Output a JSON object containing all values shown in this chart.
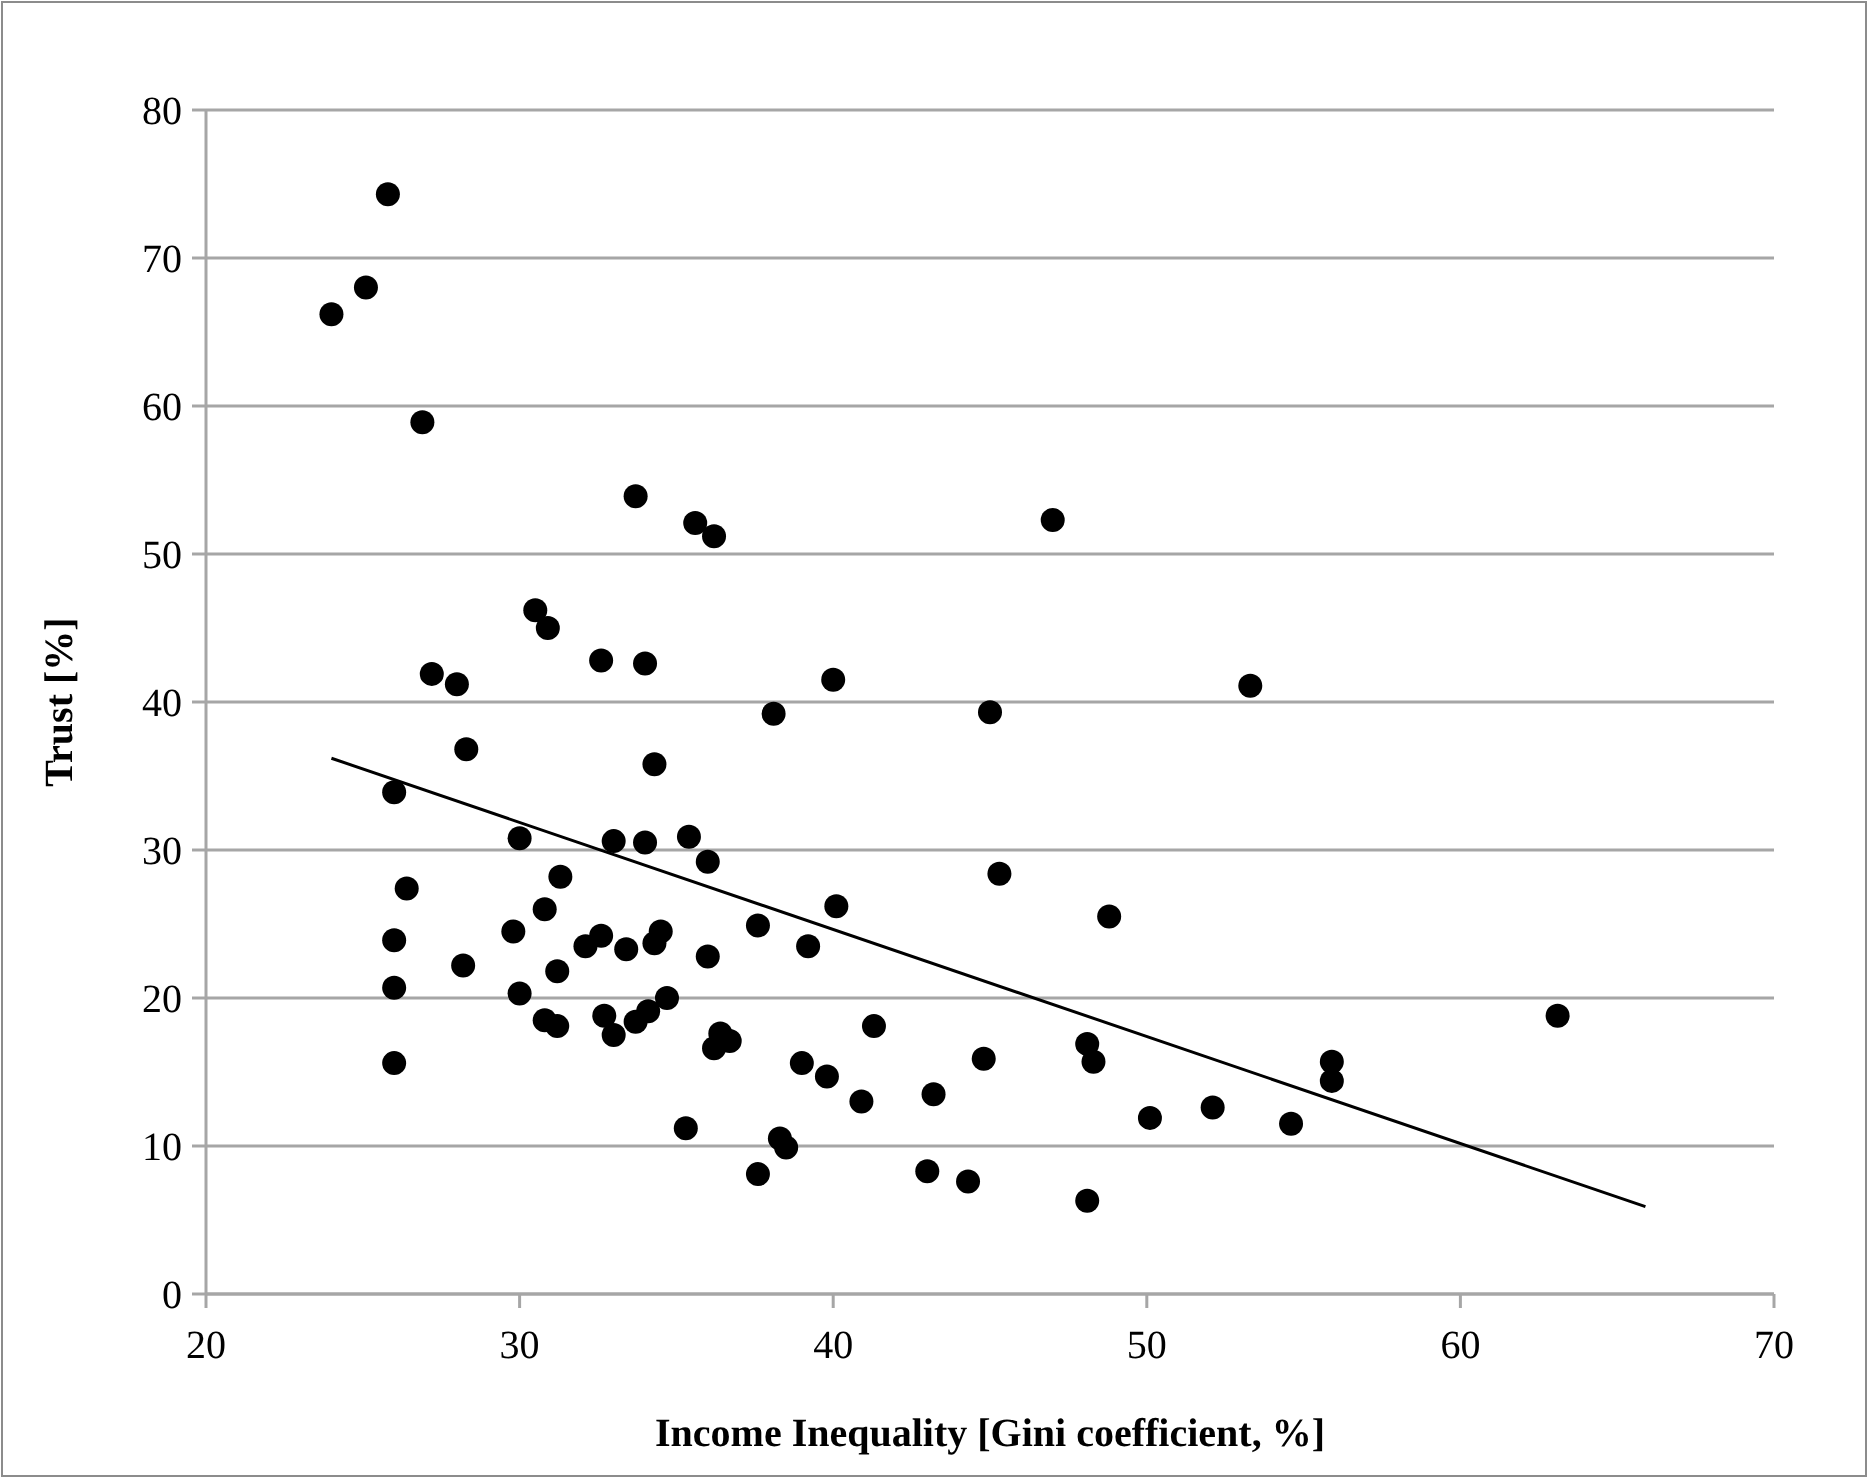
{
  "chart_data": {
    "type": "scatter",
    "xlabel": "Income Inequality [Gini coefficient, %]",
    "ylabel": "Trust [%]",
    "xlim": [
      20,
      70
    ],
    "xticks": [
      20,
      30,
      40,
      50,
      60,
      70
    ],
    "ylim": [
      0,
      80
    ],
    "yticks": [
      0,
      10,
      20,
      30,
      40,
      50,
      60,
      70,
      80
    ],
    "grid": "y",
    "marker": "circle",
    "series": [
      {
        "color": "#000000",
        "x": [
          24.0,
          25.1,
          25.8,
          26.9,
          33.7,
          35.6,
          36.2,
          30.5,
          30.9,
          32.6,
          34.0,
          27.2,
          28.0,
          38.1,
          40.0,
          53.3,
          47.0,
          45.0,
          45.3,
          48.8,
          44.8,
          43.2,
          43.0,
          44.3,
          48.1,
          48.3,
          48.1,
          50.1,
          52.1,
          54.6,
          55.9,
          55.9,
          63.1,
          28.3,
          26.0,
          34.3,
          30.0,
          33.0,
          34.0,
          35.4,
          36.0,
          31.3,
          26.4,
          40.1,
          30.8,
          37.6,
          29.8,
          34.5,
          34.3,
          26.0,
          32.6,
          32.1,
          33.4,
          39.2,
          36.0,
          28.2,
          31.2,
          26.0,
          30.0,
          34.7,
          34.1,
          32.7,
          30.8,
          31.2,
          33.7,
          33.0,
          41.3,
          36.4,
          36.7,
          36.2,
          26.0,
          39.0,
          39.8,
          40.9,
          35.3,
          38.3,
          38.5,
          37.6
        ],
        "values": [
          66.2,
          68.0,
          74.3,
          58.9,
          53.9,
          52.1,
          51.2,
          46.2,
          45.0,
          42.8,
          42.6,
          41.9,
          41.2,
          39.2,
          41.5,
          41.1,
          52.3,
          39.3,
          28.4,
          25.5,
          15.9,
          13.5,
          8.3,
          7.6,
          16.9,
          15.7,
          6.3,
          11.9,
          12.6,
          11.5,
          15.7,
          14.4,
          18.8,
          36.8,
          33.9,
          35.8,
          30.8,
          30.6,
          30.5,
          30.9,
          29.2,
          28.2,
          27.4,
          26.2,
          26.0,
          24.9,
          24.5,
          24.5,
          23.7,
          23.9,
          24.2,
          23.5,
          23.3,
          23.5,
          22.8,
          22.2,
          21.8,
          20.7,
          20.3,
          20.0,
          19.1,
          18.8,
          18.5,
          18.1,
          18.4,
          17.5,
          18.1,
          17.6,
          17.1,
          16.6,
          15.6,
          15.6,
          14.7,
          13.0,
          11.2,
          10.5,
          9.9,
          8.1
        ]
      },
      {
        "type": "line",
        "color": "#000000",
        "x": [
          24.0,
          65.9
        ],
        "values": [
          36.2,
          5.9
        ],
        "marker": "none"
      }
    ]
  }
}
